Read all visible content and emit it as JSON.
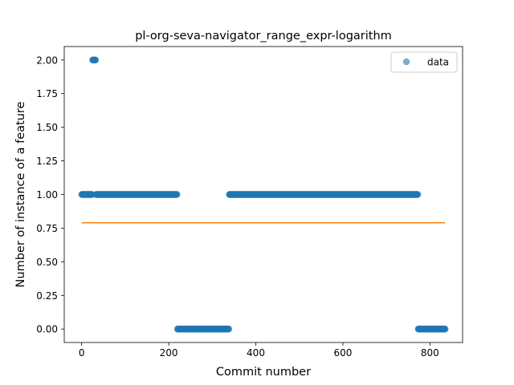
{
  "chart_data": {
    "type": "scatter",
    "title": "pl-org-seva-navigator_range_expr-logarithm",
    "xlabel": "Commit number",
    "ylabel": "Number of instance of a feature",
    "xlim": [
      -40,
      875
    ],
    "ylim": [
      -0.1,
      2.1
    ],
    "xticks": [
      0,
      200,
      400,
      600,
      800
    ],
    "yticks": [
      0.0,
      0.25,
      0.5,
      0.75,
      1.0,
      1.25,
      1.5,
      1.75,
      2.0
    ],
    "ytick_labels": [
      "0.00",
      "0.25",
      "0.50",
      "0.75",
      "1.00",
      "1.25",
      "1.50",
      "1.75",
      "2.00"
    ],
    "grid": false,
    "legend": {
      "position": "top-right",
      "entries": [
        "data"
      ]
    },
    "series": [
      {
        "name": "data",
        "kind": "scatter",
        "color": "#1f77b4",
        "segments": [
          {
            "x_start": 0,
            "x_end": 24,
            "y": 1
          },
          {
            "x_start": 25,
            "x_end": 32,
            "y": 2
          },
          {
            "x_start": 33,
            "x_end": 219,
            "y": 1
          },
          {
            "x_start": 220,
            "x_end": 338,
            "y": 0
          },
          {
            "x_start": 339,
            "x_end": 772,
            "y": 1
          },
          {
            "x_start": 773,
            "x_end": 835,
            "y": 0
          }
        ]
      },
      {
        "name": "",
        "kind": "line",
        "color": "#ff7f0e",
        "x": [
          0,
          835
        ],
        "y": [
          0.79,
          0.79
        ]
      }
    ]
  }
}
